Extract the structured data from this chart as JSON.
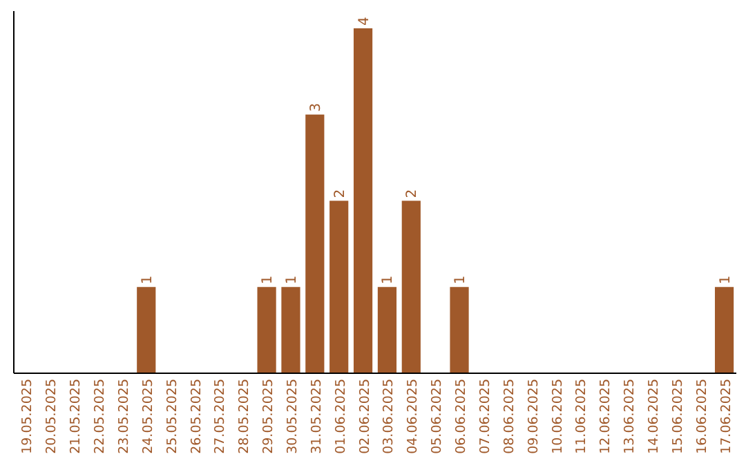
{
  "chart_data": {
    "type": "bar",
    "categories": [
      "19.05.2025",
      "20.05.2025",
      "21.05.2025",
      "22.05.2025",
      "23.05.2025",
      "24.05.2025",
      "25.05.2025",
      "26.05.2025",
      "27.05.2025",
      "28.05.2025",
      "29.05.2025",
      "30.05.2025",
      "31.05.2025",
      "01.06.2025",
      "02.06.2025",
      "03.06.2025",
      "04.06.2025",
      "05.06.2025",
      "06.06.2025",
      "07.06.2025",
      "08.06.2025",
      "09.06.2025",
      "10.06.2025",
      "11.06.2025",
      "12.06.2025",
      "13.06.2025",
      "14.06.2025",
      "15.06.2025",
      "16.06.2025",
      "17.06.2025"
    ],
    "values": [
      0,
      0,
      0,
      0,
      0,
      1,
      0,
      0,
      0,
      0,
      1,
      1,
      3,
      2,
      4,
      1,
      2,
      0,
      1,
      0,
      0,
      0,
      0,
      0,
      0,
      0,
      0,
      0,
      0,
      1
    ],
    "value_labels": [
      null,
      null,
      null,
      null,
      null,
      "1",
      null,
      null,
      null,
      null,
      "1",
      "1",
      "3",
      "2",
      "4",
      "1",
      "2",
      null,
      "1",
      null,
      null,
      null,
      null,
      null,
      null,
      null,
      null,
      null,
      null,
      "1"
    ],
    "color": "#a0592a",
    "ylim": [
      0,
      4.2
    ],
    "tick_labels": "x",
    "grid": false
  }
}
